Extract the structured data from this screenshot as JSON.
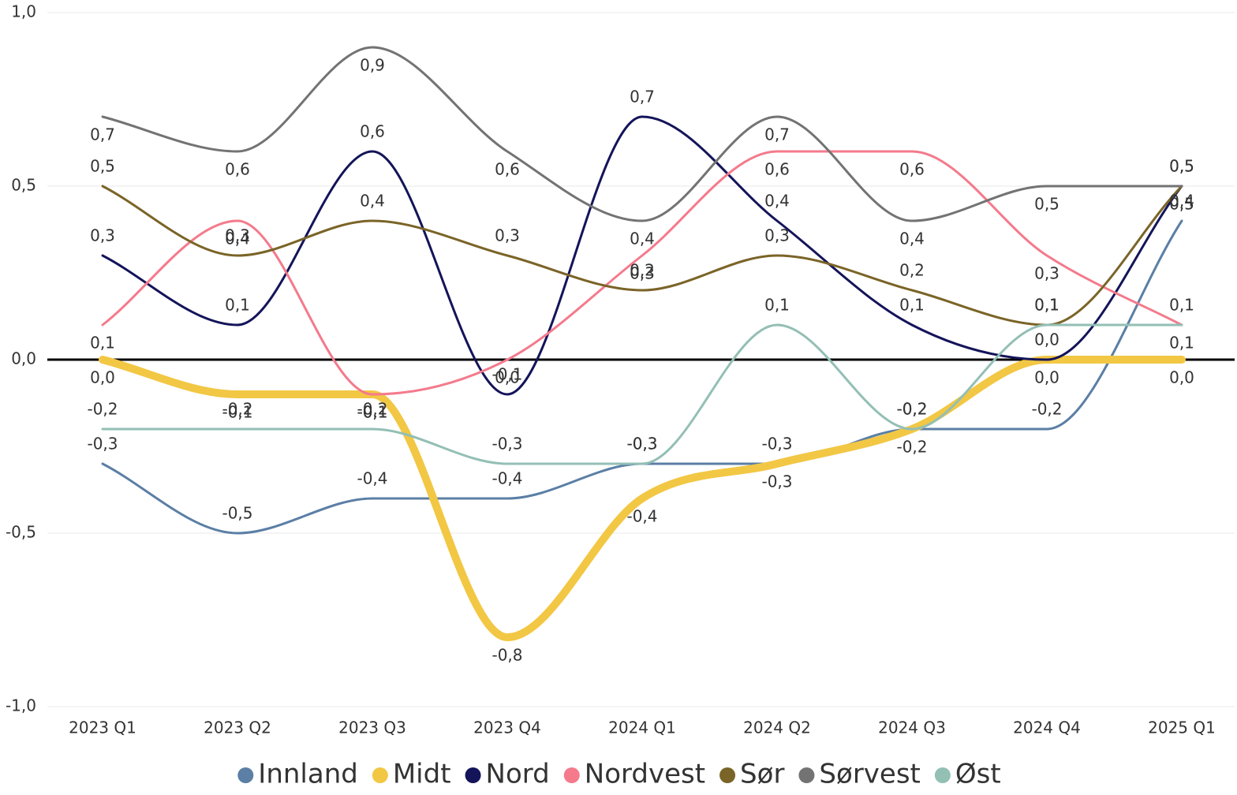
{
  "chart_data": {
    "type": "line",
    "categories": [
      "2023 Q1",
      "2023 Q2",
      "2023 Q3",
      "2023 Q4",
      "2024 Q1",
      "2024 Q2",
      "2024 Q3",
      "2024 Q4",
      "2025 Q1"
    ],
    "series": [
      {
        "name": "Innland",
        "color": "#5b7fa5",
        "line_width": 3,
        "values": [
          -0.3,
          -0.5,
          -0.4,
          -0.4,
          -0.3,
          -0.3,
          -0.2,
          -0.2,
          0.4
        ],
        "value_labels": [
          "-0,3",
          "-0,5",
          "-0,4",
          "-0,4",
          "-0,3",
          "-0,3",
          "-0,2",
          "-0,2",
          "0,4"
        ]
      },
      {
        "name": "Midt",
        "color": "#f2c744",
        "line_width": 10,
        "values": [
          0.0,
          -0.1,
          -0.1,
          -0.8,
          -0.4,
          -0.3,
          -0.2,
          0.0,
          0.0
        ],
        "value_labels": [
          "0,0",
          "-0,1",
          "-0,1",
          "-0,8",
          "-0,4",
          "-0,3",
          "-0,2",
          "0,0",
          "0,0"
        ]
      },
      {
        "name": "Nord",
        "color": "#14145a",
        "line_width": 3,
        "values": [
          0.3,
          0.1,
          0.6,
          -0.1,
          0.7,
          0.4,
          0.1,
          0.0,
          0.5
        ],
        "value_labels": [
          "0,3",
          "0,1",
          "0,6",
          "-0,1",
          "0,7",
          "0,4",
          "0,1",
          "0,0",
          "0,5"
        ]
      },
      {
        "name": "Nordvest",
        "color": "#f47a8c",
        "line_width": 3,
        "values": [
          0.1,
          0.4,
          -0.1,
          0.0,
          0.3,
          0.6,
          0.6,
          0.3,
          0.1
        ],
        "value_labels": [
          "0,1",
          "0,4",
          "-0,1",
          "0,0",
          "0,3",
          "0,6",
          "0,6",
          "0,3",
          "0,1"
        ]
      },
      {
        "name": "Sør",
        "color": "#7a6427",
        "line_width": 3,
        "values": [
          0.5,
          0.3,
          0.4,
          0.3,
          0.2,
          0.3,
          0.2,
          0.1,
          0.5
        ],
        "value_labels": [
          "0,5",
          "0,3",
          "0,4",
          "0,3",
          "0,2",
          "0,3",
          "0,2",
          "0,1",
          "0,5"
        ]
      },
      {
        "name": "Sørvest",
        "color": "#737373",
        "line_width": 3,
        "values": [
          0.7,
          0.6,
          0.9,
          0.6,
          0.4,
          0.7,
          0.4,
          0.5,
          0.5
        ],
        "value_labels": [
          "0,7",
          "0,6",
          "0,9",
          "0,6",
          "0,4",
          "0,7",
          "0,4",
          "0,5",
          "0,5"
        ]
      },
      {
        "name": "Øst",
        "color": "#93bfb5",
        "line_width": 3,
        "values": [
          -0.2,
          -0.2,
          -0.2,
          -0.3,
          -0.3,
          0.1,
          -0.2,
          0.1,
          0.1
        ],
        "value_labels": [
          "-0,2",
          "-0,2",
          "-0,2",
          "-0,3",
          "-0,3",
          "0,1",
          "-0,2",
          "0,1",
          "0,1"
        ]
      }
    ],
    "ylim": [
      -1.0,
      1.0
    ],
    "yticks": [
      {
        "value": -1.0,
        "label": "-1,0"
      },
      {
        "value": -0.5,
        "label": "-0,5"
      },
      {
        "value": 0.0,
        "label": "0,0"
      },
      {
        "value": 0.5,
        "label": "0,5"
      },
      {
        "value": 1.0,
        "label": "1,0"
      }
    ],
    "grid": true,
    "legend": "bottom"
  }
}
